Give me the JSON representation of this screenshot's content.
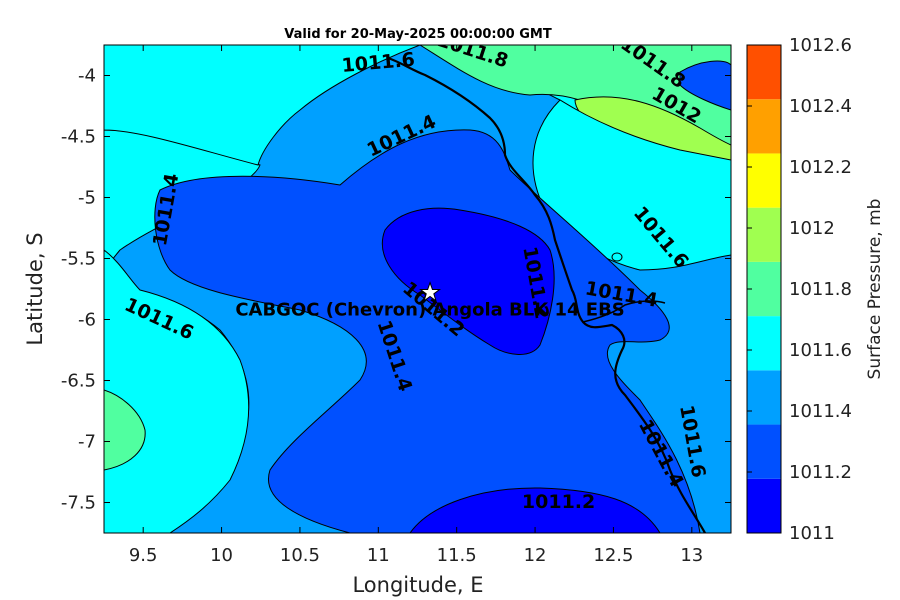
{
  "title": "Valid for 20-May-2025 00:00:00 GMT",
  "site_label": "CABGOC (Chevron) Angola BLK 14  EBS",
  "site_lon": 11.33,
  "site_lat": -5.78,
  "chart_data": {
    "type": "contour-map",
    "xlabel": "Longitude, E",
    "ylabel": "Latitude, S",
    "xlim": [
      9.25,
      13.25
    ],
    "ylim": [
      -7.75,
      -3.75
    ],
    "xticks": [
      "9.5",
      "10",
      "10.5",
      "11",
      "11.5",
      "12",
      "12.5",
      "13"
    ],
    "xtick_values": [
      9.5,
      10,
      10.5,
      11,
      11.5,
      12,
      12.5,
      13
    ],
    "yticks": [
      "-4",
      "-4.5",
      "-5",
      "-5.5",
      "-6",
      "-6.5",
      "-7",
      "-7.5"
    ],
    "ytick_values": [
      -4,
      -4.5,
      -5,
      -5.5,
      -6,
      -6.5,
      -7,
      -7.5
    ],
    "colorbar": {
      "title": "Surface Pressure, mb",
      "levels": [
        "1011",
        "1011.2",
        "1011.4",
        "1011.6",
        "1011.8",
        "1012",
        "1012.2",
        "1012.4",
        "1012.6"
      ],
      "colors": [
        "#0000ff",
        "#0050ff",
        "#00a0ff",
        "#00ffff",
        "#50ffa0",
        "#a0ff50",
        "#ffff00",
        "#ffa000",
        "#ff5000"
      ]
    },
    "contour_labels": [
      {
        "text": "1011.8",
        "lon": 11.6,
        "lat": -3.8,
        "angle": 18
      },
      {
        "text": "1011.6",
        "lon": 11.0,
        "lat": -3.9,
        "angle": -5
      },
      {
        "text": "1011.8",
        "lon": 12.75,
        "lat": -3.9,
        "angle": 35
      },
      {
        "text": "1012",
        "lon": 12.9,
        "lat": -4.25,
        "angle": 30
      },
      {
        "text": "1011.4",
        "lon": 11.15,
        "lat": -4.5,
        "angle": -25
      },
      {
        "text": "1011.4",
        "lon": 9.65,
        "lat": -5.1,
        "angle": -80
      },
      {
        "text": "1011.6",
        "lon": 12.8,
        "lat": -5.33,
        "angle": 50
      },
      {
        "text": "1011.2",
        "lon": 12.0,
        "lat": -5.7,
        "angle": 80
      },
      {
        "text": "1011.4",
        "lon": 12.55,
        "lat": -5.8,
        "angle": 10
      },
      {
        "text": "1011.6",
        "lon": 9.6,
        "lat": -6.0,
        "angle": 25
      },
      {
        "text": "1011.2",
        "lon": 11.35,
        "lat": -5.92,
        "angle": 40
      },
      {
        "text": "1011.4",
        "lon": 11.1,
        "lat": -6.3,
        "angle": 72
      },
      {
        "text": "1011.4",
        "lon": 12.8,
        "lat": -7.1,
        "angle": 62
      },
      {
        "text": "1011.6",
        "lon": 13.0,
        "lat": -7.0,
        "angle": 80
      },
      {
        "text": "1011.2",
        "lon": 12.15,
        "lat": -7.5,
        "angle": 0
      }
    ]
  }
}
